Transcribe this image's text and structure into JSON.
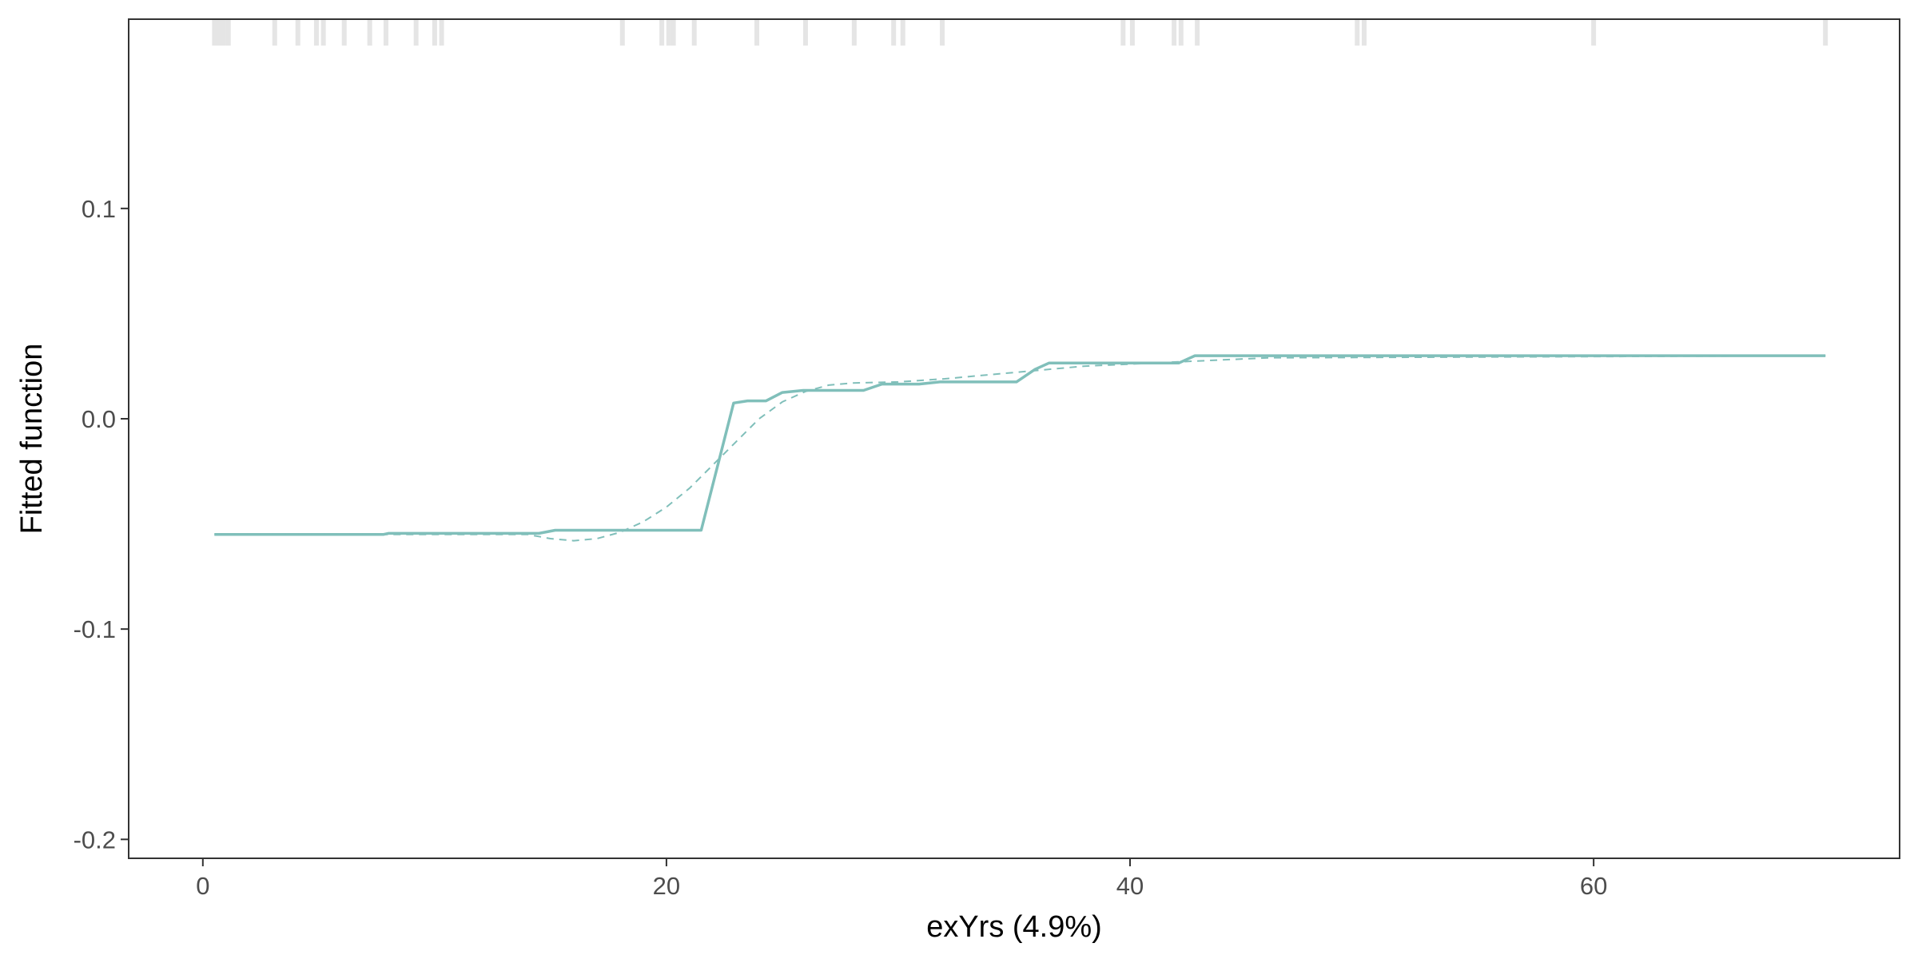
{
  "chart_data": {
    "type": "line",
    "title": "",
    "xlabel": "exYrs  (4.9%)",
    "ylabel": "Fitted function",
    "xlim": [
      -3.2,
      73.2
    ],
    "ylim": [
      -0.209,
      0.19
    ],
    "x_ticks": [
      0,
      20,
      40,
      60
    ],
    "x_tick_labels": [
      "0",
      "20",
      "40",
      "60"
    ],
    "y_ticks": [
      -0.2,
      -0.1,
      0.0,
      0.1
    ],
    "y_tick_labels": [
      "-0.2",
      "-0.1",
      "0.0",
      "0.1"
    ],
    "grid": false,
    "legend": "none",
    "colors": {
      "line": "#80bfba",
      "rug": "#e5e5e5",
      "axis": "#333333"
    },
    "rug_x": [
      0.5,
      0.7,
      0.9,
      1.1,
      3.1,
      4.1,
      4.9,
      5.2,
      6.1,
      7.2,
      7.9,
      9.2,
      10.0,
      10.3,
      18.1,
      19.8,
      20.1,
      20.3,
      21.2,
      23.9,
      26.0,
      28.1,
      29.8,
      30.2,
      31.9,
      39.7,
      40.1,
      41.9,
      42.2,
      42.9,
      49.8,
      50.1,
      60.0,
      70.0
    ],
    "series": [
      {
        "style": "solid",
        "x": [
          0.5,
          7.8,
          8.0,
          14.5,
          15.2,
          21.5,
          22.9,
          23.5,
          24.3,
          25.0,
          25.9,
          28.5,
          29.3,
          30.9,
          31.8,
          35.1,
          35.9,
          36.5,
          42.1,
          42.8,
          70.0
        ],
        "y": [
          -0.055,
          -0.055,
          -0.0545,
          -0.0545,
          -0.053,
          -0.053,
          0.0075,
          0.0085,
          0.0085,
          0.0125,
          0.0135,
          0.0135,
          0.0165,
          0.0165,
          0.0175,
          0.0175,
          0.0235,
          0.0265,
          0.0265,
          0.03,
          0.03
        ]
      },
      {
        "style": "dashed",
        "x": [
          0.5,
          14.0,
          15.0,
          16.0,
          17.0,
          18.0,
          19.0,
          20.0,
          21.0,
          22.0,
          23.0,
          24.0,
          25.0,
          26.0,
          27.0,
          28.0,
          30.0,
          32.0,
          34.0,
          36.0,
          38.0,
          40.0,
          42.0,
          44.0,
          46.0,
          70.0
        ],
        "y": [
          -0.055,
          -0.055,
          -0.057,
          -0.058,
          -0.057,
          -0.054,
          -0.049,
          -0.042,
          -0.033,
          -0.022,
          -0.011,
          0.0,
          0.008,
          0.013,
          0.016,
          0.017,
          0.0175,
          0.019,
          0.021,
          0.023,
          0.025,
          0.026,
          0.027,
          0.028,
          0.029,
          0.03
        ]
      }
    ]
  }
}
